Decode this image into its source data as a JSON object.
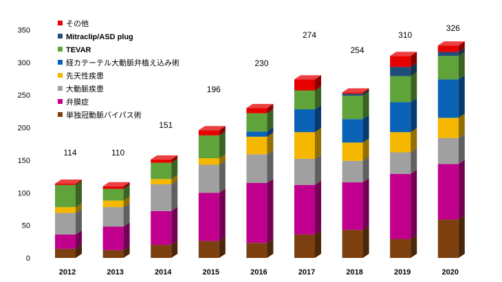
{
  "chart_data": {
    "type": "bar",
    "stacked": true,
    "style": "3d",
    "categories": [
      "2012",
      "2013",
      "2014",
      "2015",
      "2016",
      "2017",
      "2018",
      "2019",
      "2020"
    ],
    "totals": [
      114,
      110,
      151,
      196,
      230,
      274,
      254,
      310,
      326
    ],
    "series": [
      {
        "name": "単独冠動脈バイパス術",
        "color": "#7B3F10",
        "values": [
          14,
          12,
          20,
          26,
          23,
          36,
          43,
          29,
          59
        ]
      },
      {
        "name": "弁膜症",
        "color": "#C0008C",
        "values": [
          22,
          36,
          52,
          74,
          92,
          76,
          73,
          100,
          85
        ]
      },
      {
        "name": "大動脈疾患",
        "color": "#A0A0A0",
        "values": [
          33,
          30,
          41,
          43,
          44,
          40,
          33,
          33,
          40
        ]
      },
      {
        "name": "先天性疾患",
        "color": "#F5B700",
        "values": [
          9,
          10,
          8,
          10,
          27,
          41,
          28,
          31,
          31
        ]
      },
      {
        "name": "経カテーテル大動脈弁植え込み術",
        "color": "#0A62B6",
        "values": [
          0,
          0,
          0,
          0,
          8,
          35,
          36,
          46,
          59
        ]
      },
      {
        "name": "TEVAR",
        "color": "#5FA33A",
        "values": [
          34,
          18,
          25,
          35,
          28,
          29,
          36,
          40,
          36
        ]
      },
      {
        "name": "Mitraclip/ASD plug",
        "color": "#1F4E79",
        "values": [
          0,
          0,
          0,
          0,
          0,
          0,
          3,
          14,
          6
        ]
      },
      {
        "name": "その他",
        "color": "#E60000",
        "values": [
          2,
          4,
          5,
          8,
          8,
          17,
          2,
          17,
          10
        ]
      }
    ],
    "ylim": [
      0,
      350
    ],
    "yticks": [
      0,
      50,
      100,
      150,
      200,
      250,
      300,
      350
    ],
    "grid": false,
    "legend_position": "top-left",
    "legend_order": [
      "その他",
      "Mitraclip/ASD plug",
      "TEVAR",
      "経カテーテル大動脈弁植え込み術",
      "先天性疾患",
      "大動脈疾患",
      "弁膜症",
      "単独冠動脈バイパス術"
    ]
  }
}
